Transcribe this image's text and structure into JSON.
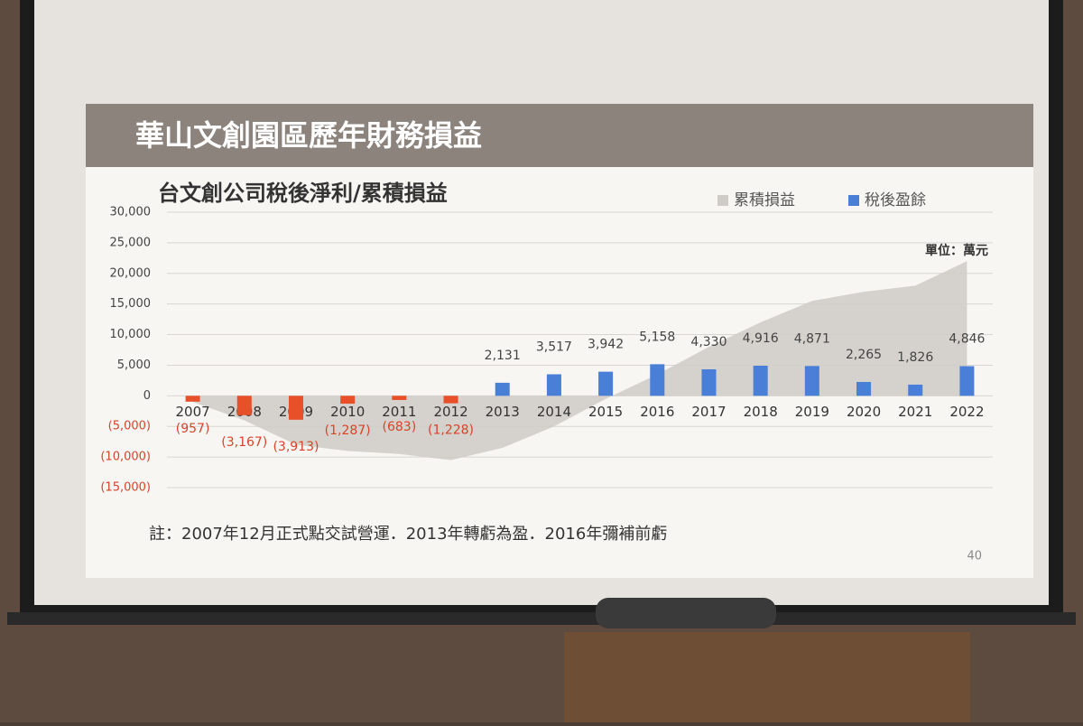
{
  "slide_title": "華山文創園區歷年財務損益",
  "note": "註：2007年12月正式點交試營運．2013年轉虧為盈．2016年彌補前虧",
  "page_number": "40",
  "chart_data": {
    "type": "combo",
    "title": "台文創公司稅後淨利/累積損益",
    "unit_label": "單位：萬元",
    "categories": [
      "2007",
      "2008",
      "2009",
      "2010",
      "2011",
      "2012",
      "2013",
      "2014",
      "2015",
      "2016",
      "2017",
      "2018",
      "2019",
      "2020",
      "2021",
      "2022"
    ],
    "series": [
      {
        "name": "累積損益",
        "type": "area",
        "color": "#cfcbc6",
        "values": [
          -1000,
          -4000,
          -8000,
          -9000,
          -9500,
          -10500,
          -8500,
          -5000,
          -500,
          3500,
          8000,
          12000,
          15500,
          17000,
          18000,
          22000
        ]
      },
      {
        "name": "稅後盈餘",
        "type": "bar",
        "color": "#4a7fd8",
        "negative_color": "#e8502a",
        "values": [
          -957,
          -3167,
          -3913,
          -1287,
          -683,
          -1228,
          2131,
          3517,
          3942,
          5158,
          4330,
          4916,
          4871,
          2265,
          1826,
          4846
        ],
        "value_labels": [
          "(957)",
          "(3,167)",
          "(3,913)",
          "(1,287)",
          "(683)",
          "(1,228)",
          "2,131",
          "3,517",
          "3,942",
          "5,158",
          "4,330",
          "4,916",
          "4,871",
          "2,265",
          "1,826",
          "4,846"
        ]
      }
    ],
    "ylim": [
      -15000,
      30000
    ],
    "yticks": [
      {
        "value": -15000,
        "label": "(15,000)"
      },
      {
        "value": -10000,
        "label": "(10,000)"
      },
      {
        "value": -5000,
        "label": "(5,000)"
      },
      0,
      {
        "value": 5000,
        "label": "5,000"
      },
      {
        "value": 10000,
        "label": "10,000"
      },
      {
        "value": 15000,
        "label": "15,000"
      },
      {
        "value": 20000,
        "label": "20,000"
      },
      {
        "value": 25000,
        "label": "25,000"
      },
      {
        "value": 30000,
        "label": "30,000"
      }
    ],
    "grid": true,
    "legend": "top-right"
  }
}
